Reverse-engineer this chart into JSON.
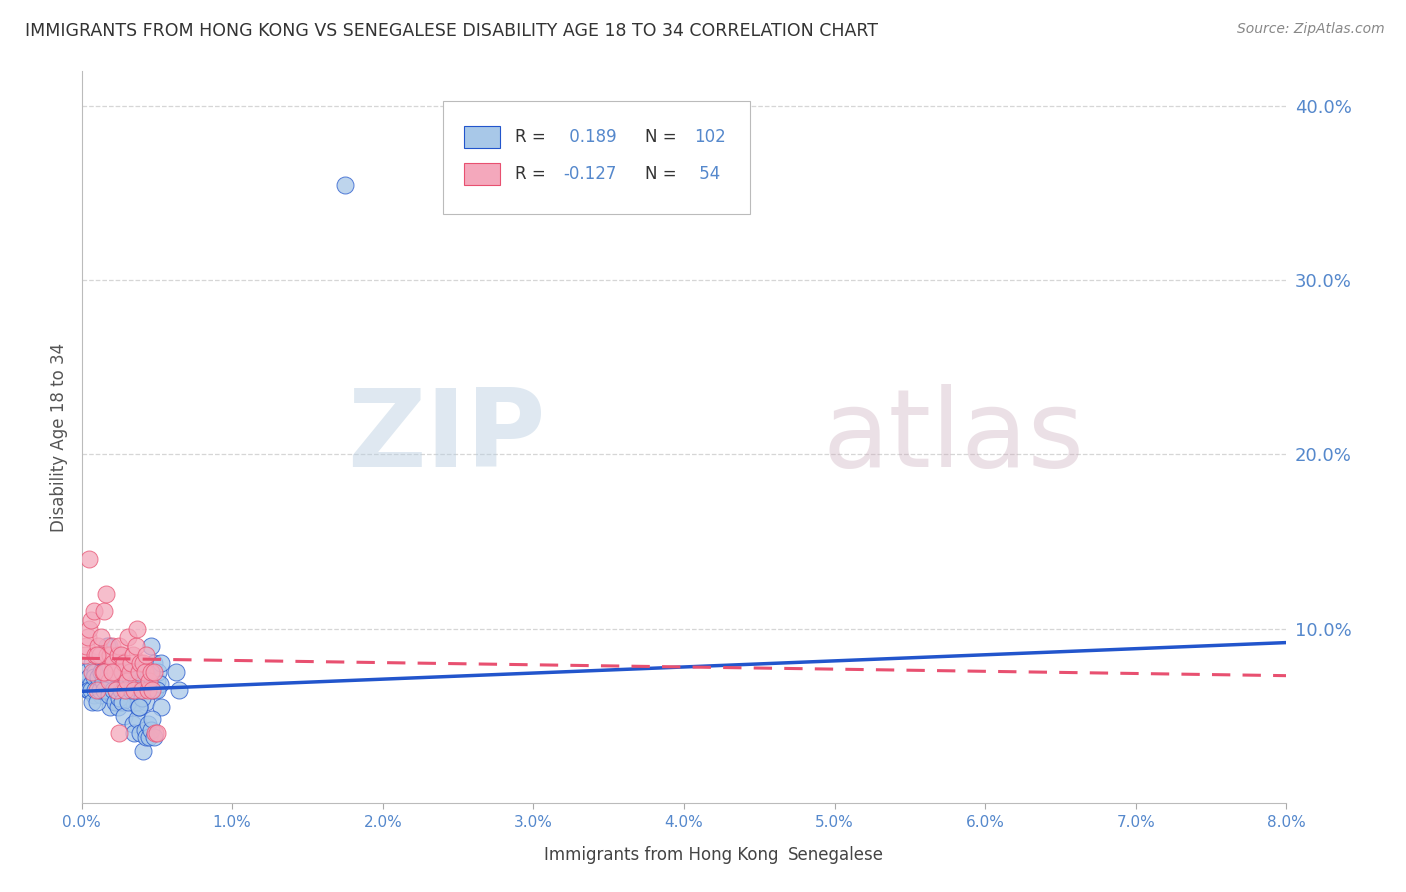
{
  "title": "IMMIGRANTS FROM HONG KONG VS SENEGALESE DISABILITY AGE 18 TO 34 CORRELATION CHART",
  "source": "Source: ZipAtlas.com",
  "ylabel": "Disability Age 18 to 34",
  "legend_label_blue": "Immigrants from Hong Kong",
  "legend_label_pink": "Senegalese",
  "r_blue": 0.189,
  "n_blue": 102,
  "r_pink": -0.127,
  "n_pink": 54,
  "xlim": [
    0.0,
    0.08
  ],
  "ylim": [
    0.0,
    0.42
  ],
  "yticks_right": [
    0.1,
    0.2,
    0.3,
    0.4
  ],
  "ytick_labels_right": [
    "10.0%",
    "20.0%",
    "30.0%",
    "40.0%"
  ],
  "xticks": [
    0.0,
    0.01,
    0.02,
    0.03,
    0.04,
    0.05,
    0.06,
    0.07,
    0.08
  ],
  "xtick_labels": [
    "0.0%",
    "1.0%",
    "2.0%",
    "3.0%",
    "4.0%",
    "5.0%",
    "6.0%",
    "7.0%",
    "8.0%"
  ],
  "color_blue": "#A8C8E8",
  "color_pink": "#F4A8BC",
  "line_color_blue": "#2255CC",
  "line_color_pink": "#E85070",
  "watermark_zip": "ZIP",
  "watermark_atlas": "atlas",
  "background_color": "#FFFFFF",
  "grid_color": "#CCCCCC",
  "axis_label_color": "#5588CC",
  "title_color": "#333333",
  "legend_text_color": "#5588CC",
  "blue_x": [
    0.0002,
    0.0003,
    0.0004,
    0.0005,
    0.0006,
    0.0007,
    0.0008,
    0.0009,
    0.001,
    0.0011,
    0.0012,
    0.0013,
    0.0014,
    0.0015,
    0.0016,
    0.0017,
    0.0018,
    0.0019,
    0.002,
    0.0021,
    0.0022,
    0.0023,
    0.0024,
    0.0025,
    0.0026,
    0.0027,
    0.0028,
    0.0029,
    0.003,
    0.0031,
    0.0032,
    0.0033,
    0.0034,
    0.0035,
    0.0036,
    0.0037,
    0.0038,
    0.0039,
    0.004,
    0.0041,
    0.0042,
    0.0043,
    0.0044,
    0.0045,
    0.0046,
    0.0047,
    0.0048,
    0.0049,
    0.005,
    0.0051,
    0.0052,
    0.0053,
    0.0005,
    0.0006,
    0.0007,
    0.0008,
    0.0009,
    0.001,
    0.0011,
    0.0012,
    0.0013,
    0.0014,
    0.0015,
    0.0016,
    0.0017,
    0.0018,
    0.0019,
    0.002,
    0.0021,
    0.0022,
    0.0023,
    0.0024,
    0.0025,
    0.0026,
    0.0027,
    0.0028,
    0.0029,
    0.003,
    0.0031,
    0.0032,
    0.0033,
    0.0034,
    0.0035,
    0.0036,
    0.0037,
    0.0038,
    0.0039,
    0.004,
    0.0041,
    0.0042,
    0.0043,
    0.0044,
    0.0045,
    0.0046,
    0.0047,
    0.0048,
    0.0053,
    0.0063,
    0.0065,
    0.005,
    0.0038,
    0.0175
  ],
  "blue_y": [
    0.07,
    0.075,
    0.065,
    0.072,
    0.068,
    0.08,
    0.062,
    0.075,
    0.068,
    0.065,
    0.072,
    0.062,
    0.078,
    0.07,
    0.065,
    0.068,
    0.09,
    0.055,
    0.072,
    0.078,
    0.065,
    0.07,
    0.058,
    0.075,
    0.065,
    0.07,
    0.065,
    0.07,
    0.075,
    0.06,
    0.065,
    0.072,
    0.068,
    0.075,
    0.065,
    0.058,
    0.07,
    0.072,
    0.068,
    0.075,
    0.065,
    0.058,
    0.072,
    0.07,
    0.09,
    0.065,
    0.08,
    0.065,
    0.07,
    0.075,
    0.068,
    0.055,
    0.065,
    0.065,
    0.058,
    0.072,
    0.065,
    0.058,
    0.072,
    0.065,
    0.075,
    0.07,
    0.065,
    0.075,
    0.09,
    0.062,
    0.078,
    0.075,
    0.065,
    0.058,
    0.065,
    0.055,
    0.06,
    0.065,
    0.058,
    0.05,
    0.068,
    0.065,
    0.058,
    0.072,
    0.065,
    0.045,
    0.04,
    0.068,
    0.048,
    0.055,
    0.04,
    0.06,
    0.03,
    0.042,
    0.038,
    0.045,
    0.038,
    0.042,
    0.048,
    0.038,
    0.08,
    0.075,
    0.065,
    0.065,
    0.055,
    0.355
  ],
  "pink_x": [
    0.0002,
    0.0003,
    0.0004,
    0.0005,
    0.0006,
    0.0007,
    0.0008,
    0.0009,
    0.001,
    0.0011,
    0.0012,
    0.0013,
    0.0014,
    0.0015,
    0.0016,
    0.0017,
    0.0018,
    0.0019,
    0.002,
    0.0021,
    0.0022,
    0.0023,
    0.0024,
    0.0025,
    0.0026,
    0.0027,
    0.0028,
    0.0029,
    0.003,
    0.0031,
    0.0032,
    0.0033,
    0.0034,
    0.0035,
    0.0036,
    0.0037,
    0.0038,
    0.0039,
    0.004,
    0.0041,
    0.0042,
    0.0043,
    0.0044,
    0.0045,
    0.0046,
    0.0047,
    0.0048,
    0.0049,
    0.005,
    0.0005,
    0.001,
    0.0015,
    0.002,
    0.0025
  ],
  "pink_y": [
    0.085,
    0.09,
    0.095,
    0.1,
    0.105,
    0.075,
    0.11,
    0.085,
    0.065,
    0.09,
    0.085,
    0.095,
    0.075,
    0.11,
    0.12,
    0.085,
    0.07,
    0.085,
    0.09,
    0.08,
    0.075,
    0.065,
    0.085,
    0.09,
    0.085,
    0.075,
    0.08,
    0.065,
    0.07,
    0.095,
    0.075,
    0.08,
    0.085,
    0.065,
    0.09,
    0.1,
    0.075,
    0.08,
    0.065,
    0.08,
    0.075,
    0.085,
    0.065,
    0.07,
    0.075,
    0.065,
    0.075,
    0.04,
    0.04,
    0.14,
    0.085,
    0.075,
    0.075,
    0.04
  ],
  "blue_trend_x": [
    0.0,
    0.08
  ],
  "blue_trend_y": [
    0.064,
    0.092
  ],
  "pink_trend_x": [
    0.0,
    0.08
  ],
  "pink_trend_y": [
    0.083,
    0.073
  ]
}
